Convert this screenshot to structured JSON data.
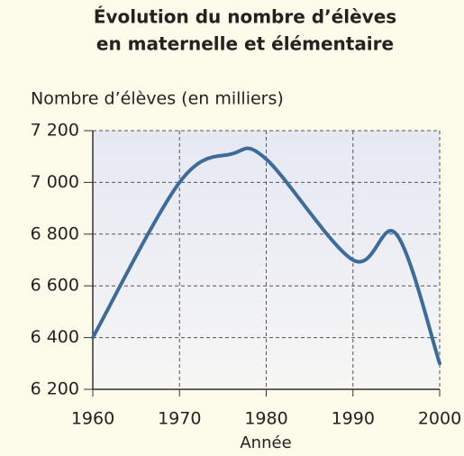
{
  "chart_data": {
    "type": "line",
    "title": [
      "Évolution du nombre d’élèves",
      "en maternelle et élémentaire"
    ],
    "ylabel": "Nombre d’élèves (en milliers)",
    "xlabel": "Année",
    "x": [
      1960,
      1970,
      1976,
      1980,
      1990,
      1995,
      2000
    ],
    "series": [
      {
        "color": "#3a6c9e",
        "values": [
          6400,
          7000,
          7110,
          7090,
          6700,
          6800,
          6300
        ]
      }
    ],
    "xlim": [
      1960,
      2000
    ],
    "xticks": [
      1960,
      1970,
      1980,
      1990,
      2000
    ],
    "ylim": [
      6200,
      7200
    ],
    "yticks": [
      {
        "value": 6200,
        "label": "6 200"
      },
      {
        "value": 6400,
        "label": "6 400"
      },
      {
        "value": 6600,
        "label": "6 600"
      },
      {
        "value": 6800,
        "label": "6 800"
      },
      {
        "value": 7000,
        "label": "7 000"
      },
      {
        "value": 7200,
        "label": "7 200"
      }
    ],
    "grid": true,
    "smooth": true
  }
}
